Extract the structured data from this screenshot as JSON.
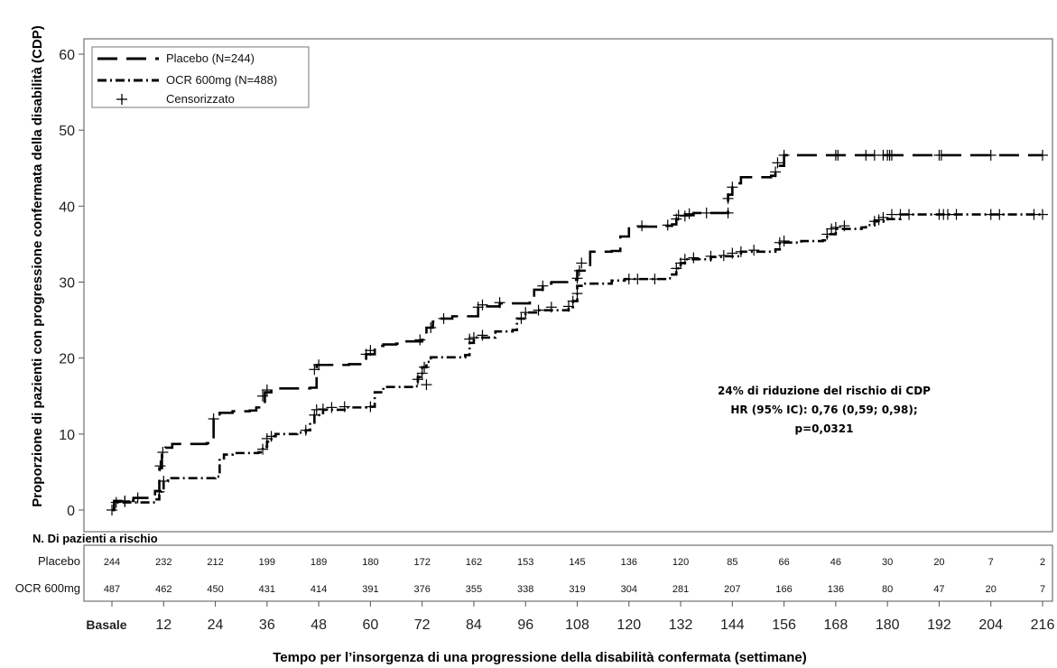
{
  "chart_data": {
    "type": "line",
    "ylabel": "Proporzione di pazienti con progressione confermata della disabilità (CDP)",
    "xlabel": "Tempo  per l’insorgenza di una progressione della disabilità  confermata (settimane)",
    "ylim": [
      0,
      60
    ],
    "yticks": [
      "0",
      "10",
      "20",
      "30",
      "40",
      "50",
      "60"
    ],
    "xlim": [
      -4,
      218
    ],
    "xticks": [
      0,
      12,
      24,
      36,
      48,
      60,
      72,
      84,
      96,
      108,
      120,
      132,
      144,
      156,
      168,
      180,
      192,
      204,
      216
    ],
    "xtick_labels": [
      "Basale",
      "12",
      "24",
      "36",
      "48",
      "60",
      "72",
      "84",
      "96",
      "108",
      "120",
      "132",
      "144",
      "156",
      "168",
      "180",
      "192",
      "204",
      "216"
    ],
    "grid": false,
    "legend_position": "top-left",
    "series": [
      {
        "name": "Placebo (N=244)",
        "style": "dashed",
        "steps": [
          [
            0,
            0
          ],
          [
            0.5,
            1.2
          ],
          [
            3,
            1.2
          ],
          [
            5,
            1.6
          ],
          [
            9,
            1.6
          ],
          [
            10,
            2.5
          ],
          [
            11,
            5.5
          ],
          [
            11.6,
            7.5
          ],
          [
            12.4,
            8.2
          ],
          [
            14,
            8.7
          ],
          [
            22,
            8.8
          ],
          [
            23.6,
            12
          ],
          [
            25,
            12.8
          ],
          [
            28,
            13
          ],
          [
            32,
            13.1
          ],
          [
            33.5,
            13.5
          ],
          [
            35.5,
            15.5
          ],
          [
            37,
            16
          ],
          [
            46,
            16.1
          ],
          [
            47.5,
            19.1
          ],
          [
            55,
            19.2
          ],
          [
            59,
            20.5
          ],
          [
            61,
            21.6
          ],
          [
            63,
            21.8
          ],
          [
            66,
            21.9
          ],
          [
            68,
            22.2
          ],
          [
            72,
            22.4
          ],
          [
            73,
            24
          ],
          [
            74.5,
            24.8
          ],
          [
            76,
            25.2
          ],
          [
            79,
            25.5
          ],
          [
            85,
            26.8
          ],
          [
            90,
            27.2
          ],
          [
            97,
            27.3
          ],
          [
            98,
            29
          ],
          [
            100,
            29.8
          ],
          [
            102,
            30
          ],
          [
            106,
            30.3
          ],
          [
            108,
            31.5
          ],
          [
            111,
            34
          ],
          [
            116,
            34.1
          ],
          [
            118,
            36
          ],
          [
            120,
            37.3
          ],
          [
            127,
            37.4
          ],
          [
            130,
            37.6
          ],
          [
            131,
            38.3
          ],
          [
            133,
            38.8
          ],
          [
            135,
            39.1
          ],
          [
            143,
            41.5
          ],
          [
            144,
            43
          ],
          [
            146,
            43.8
          ],
          [
            153,
            44
          ],
          [
            154,
            45.3
          ],
          [
            156,
            46.7
          ],
          [
            216,
            46.7
          ]
        ],
        "censored": [
          [
            0,
            0
          ],
          [
            3,
            1.2
          ],
          [
            6,
            1.6
          ],
          [
            11.2,
            5.8
          ],
          [
            11.8,
            7.6
          ],
          [
            23.6,
            12
          ],
          [
            35,
            15
          ],
          [
            36,
            15.8
          ],
          [
            47,
            18.5
          ],
          [
            48,
            19.1
          ],
          [
            59,
            20.5
          ],
          [
            60,
            21
          ],
          [
            71.5,
            22.4
          ],
          [
            74,
            24
          ],
          [
            77,
            25.2
          ],
          [
            85,
            26.7
          ],
          [
            86,
            27
          ],
          [
            90,
            27.3
          ],
          [
            100,
            29.5
          ],
          [
            108,
            30.5
          ],
          [
            108.5,
            31.5
          ],
          [
            109,
            32.5
          ],
          [
            123,
            37.4
          ],
          [
            129,
            37.5
          ],
          [
            131,
            38.3
          ],
          [
            131.5,
            38.8
          ],
          [
            133,
            38.7
          ],
          [
            134,
            39
          ],
          [
            138,
            39.1
          ],
          [
            143,
            39.1
          ],
          [
            143,
            41
          ],
          [
            144,
            42.5
          ],
          [
            154,
            44.5
          ],
          [
            154.5,
            45.7
          ],
          [
            156,
            46.7
          ],
          [
            168,
            46.7
          ],
          [
            168.5,
            46.7
          ],
          [
            175,
            46.7
          ],
          [
            177,
            46.7
          ],
          [
            179,
            46.7
          ],
          [
            180,
            46.7
          ],
          [
            180.5,
            46.7
          ],
          [
            181,
            46.7
          ],
          [
            192,
            46.7
          ],
          [
            192.5,
            46.7
          ],
          [
            204,
            46.7
          ],
          [
            216,
            46.7
          ]
        ]
      },
      {
        "name": "OCR 600mg (N=488)",
        "style": "dash-dot",
        "steps": [
          [
            0,
            0
          ],
          [
            0.5,
            1
          ],
          [
            8,
            1
          ],
          [
            10,
            1.4
          ],
          [
            11,
            2
          ],
          [
            11.5,
            2.5
          ],
          [
            12,
            3.8
          ],
          [
            13,
            4.2
          ],
          [
            24,
            4.4
          ],
          [
            25,
            6.8
          ],
          [
            26,
            7.3
          ],
          [
            28,
            7.5
          ],
          [
            34,
            7.6
          ],
          [
            35,
            8.3
          ],
          [
            36,
            9
          ],
          [
            37,
            9.7
          ],
          [
            38,
            10
          ],
          [
            43,
            10.2
          ],
          [
            45,
            10.5
          ],
          [
            46,
            11.5
          ],
          [
            47,
            12.5
          ],
          [
            49,
            13.2
          ],
          [
            54,
            13.5
          ],
          [
            59,
            13.6
          ],
          [
            61,
            15.5
          ],
          [
            63,
            16.2
          ],
          [
            70,
            16.3
          ],
          [
            71,
            17.5
          ],
          [
            72,
            18.8
          ],
          [
            73,
            19.5
          ],
          [
            74,
            20.1
          ],
          [
            82,
            20.4
          ],
          [
            83,
            22
          ],
          [
            84,
            22.7
          ],
          [
            89,
            23.5
          ],
          [
            93,
            23.7
          ],
          [
            94,
            25.2
          ],
          [
            96,
            26
          ],
          [
            99,
            26.3
          ],
          [
            106,
            26.7
          ],
          [
            107,
            27.5
          ],
          [
            108,
            29.5
          ],
          [
            109,
            29.8
          ],
          [
            116,
            30.2
          ],
          [
            119,
            30.4
          ],
          [
            129,
            30.5
          ],
          [
            130,
            31
          ],
          [
            131,
            31.8
          ],
          [
            132,
            32.5
          ],
          [
            133,
            33
          ],
          [
            139,
            33.3
          ],
          [
            142,
            33.4
          ],
          [
            146,
            34
          ],
          [
            154,
            34.3
          ],
          [
            155,
            35.2
          ],
          [
            160,
            35.4
          ],
          [
            165,
            35.5
          ],
          [
            166,
            36.3
          ],
          [
            168,
            37
          ],
          [
            174,
            37.2
          ],
          [
            175,
            37.5
          ],
          [
            177,
            38
          ],
          [
            180,
            38.3
          ],
          [
            183,
            38.9
          ],
          [
            216,
            38.9
          ]
        ],
        "censored": [
          [
            1,
            1
          ],
          [
            3,
            1.1
          ],
          [
            11,
            2.4
          ],
          [
            12,
            3.8
          ],
          [
            35,
            8
          ],
          [
            36,
            9.4
          ],
          [
            37,
            9.7
          ],
          [
            45,
            10.5
          ],
          [
            47,
            12.5
          ],
          [
            47.5,
            13.2
          ],
          [
            49,
            13.3
          ],
          [
            51,
            13.5
          ],
          [
            54,
            13.6
          ],
          [
            60,
            13.6
          ],
          [
            71,
            17.2
          ],
          [
            72,
            18
          ],
          [
            72.5,
            18.8
          ],
          [
            73,
            16.5
          ],
          [
            83,
            22.5
          ],
          [
            84,
            22.7
          ],
          [
            86,
            23
          ],
          [
            95,
            25.2
          ],
          [
            96,
            26
          ],
          [
            99,
            26.3
          ],
          [
            102,
            26.7
          ],
          [
            106,
            26.8
          ],
          [
            107,
            27.5
          ],
          [
            108,
            28.5
          ],
          [
            120,
            30.4
          ],
          [
            122,
            30.4
          ],
          [
            126,
            30.4
          ],
          [
            131,
            31.8
          ],
          [
            132,
            32.5
          ],
          [
            133,
            33
          ],
          [
            135,
            33.2
          ],
          [
            139,
            33.4
          ],
          [
            142,
            33.5
          ],
          [
            144,
            33.8
          ],
          [
            146,
            34
          ],
          [
            149,
            34.2
          ],
          [
            155,
            35.2
          ],
          [
            156,
            35.4
          ],
          [
            166,
            36.3
          ],
          [
            167,
            37
          ],
          [
            168,
            37.2
          ],
          [
            170,
            37.4
          ],
          [
            177,
            38
          ],
          [
            178,
            38.2
          ],
          [
            179,
            38.5
          ],
          [
            181,
            38.9
          ],
          [
            183,
            38.9
          ],
          [
            185,
            38.9
          ],
          [
            192,
            38.9
          ],
          [
            193,
            38.9
          ],
          [
            194,
            38.9
          ],
          [
            196,
            38.9
          ],
          [
            204,
            38.9
          ],
          [
            206,
            38.9
          ],
          [
            214,
            38.9
          ],
          [
            216,
            38.9
          ]
        ]
      }
    ],
    "legend": [
      "Placebo (N=244)",
      "OCR 600mg (N=488)",
      "Censorizzato"
    ],
    "annotations": [
      "24% di riduzione del rischio di CDP",
      "HR (95% IC): 0,76 (0,59; 0,98);",
      "p=0,0321"
    ],
    "risk_table": {
      "title": "N. Di pazienti a rischio",
      "rows": [
        {
          "label": "Placebo",
          "values": [
            "244",
            "232",
            "212",
            "199",
            "189",
            "180",
            "172",
            "162",
            "153",
            "145",
            "136",
            "120",
            "85",
            "66",
            "46",
            "30",
            "20",
            "7",
            "2"
          ]
        },
        {
          "label": "OCR 600mg",
          "values": [
            "487",
            "462",
            "450",
            "431",
            "414",
            "391",
            "376",
            "355",
            "338",
            "319",
            "304",
            "281",
            "207",
            "166",
            "136",
            "80",
            "47",
            "20",
            "7"
          ]
        }
      ]
    }
  }
}
